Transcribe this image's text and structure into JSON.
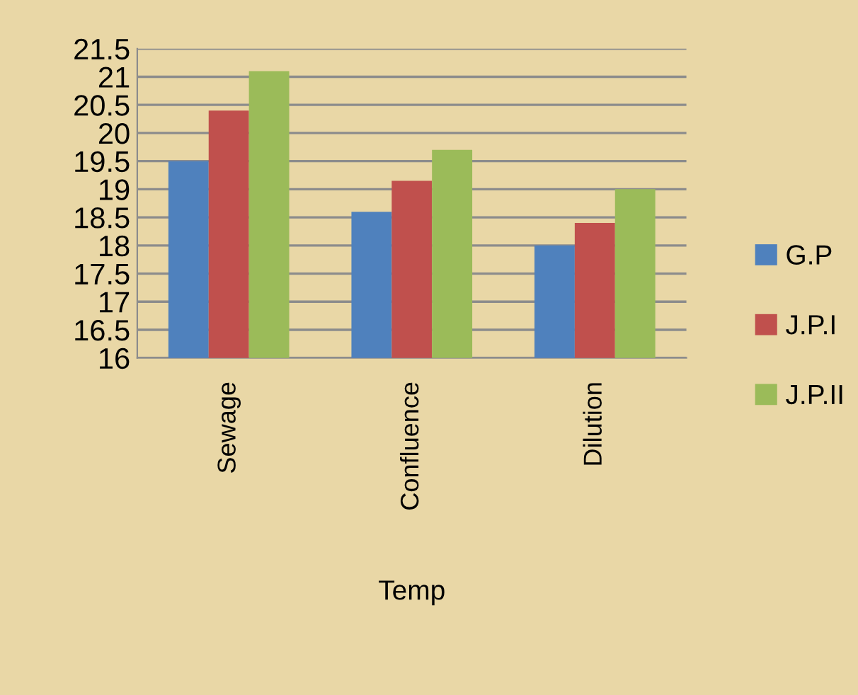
{
  "chart_data": {
    "type": "bar",
    "xlabel": "Temp",
    "categories": [
      "Sewage",
      "Confluence",
      "Dilution"
    ],
    "series": [
      {
        "name": "G.P",
        "color": "#4f81bd",
        "values": [
          19.5,
          18.6,
          18.0
        ]
      },
      {
        "name": "J.P.I",
        "color": "#c0504d",
        "values": [
          20.4,
          19.15,
          18.4
        ]
      },
      {
        "name": "J.P.II",
        "color": "#9bbb59",
        "values": [
          21.1,
          19.7,
          19.0
        ]
      }
    ],
    "ylim": [
      16,
      21.5
    ],
    "yticks": [
      16,
      16.5,
      17,
      17.5,
      18,
      18.5,
      19,
      19.5,
      20,
      20.5,
      21,
      21.5
    ],
    "grid": "y",
    "legend": "right"
  }
}
